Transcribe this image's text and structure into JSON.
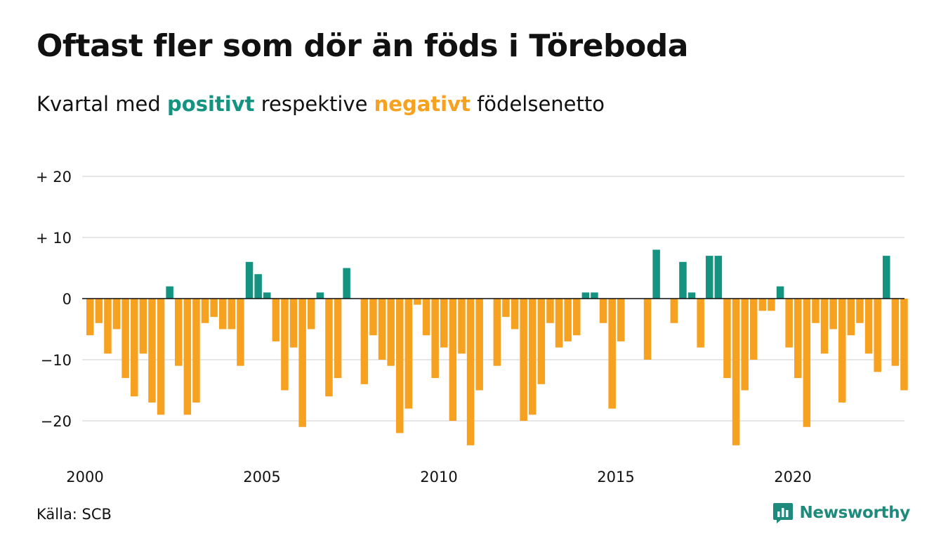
{
  "title": "Oftast fler som dör än föds i Töreboda",
  "subtitle": {
    "prefix": "Kvartal med ",
    "positive_word": "positivt",
    "middle": " respektive ",
    "negative_word": "negativt",
    "suffix": " födelsenetto"
  },
  "source": "Källa: SCB",
  "brand": {
    "name": "Newsworthy",
    "icon": "bar-chart-logo-icon"
  },
  "colors": {
    "positive": "#159381",
    "negative": "#f6a11f",
    "grid": "#dddddd",
    "text": "#111111"
  },
  "chart_data": {
    "type": "bar",
    "x_start": "2000 Q1",
    "xticks": [
      "2000",
      "2005",
      "2010",
      "2015",
      "2020"
    ],
    "ytick_labels": [
      {
        "value": 20,
        "label": "+ 20"
      },
      {
        "value": 10,
        "label": "+ 10"
      },
      {
        "value": 0,
        "label": "0"
      },
      {
        "value": -10,
        "label": "−10"
      },
      {
        "value": -20,
        "label": "−20"
      }
    ],
    "ylim": [
      -26,
      20
    ],
    "grid": true,
    "values": [
      -6,
      -4,
      -9,
      -5,
      -13,
      -16,
      -9,
      -17,
      -19,
      2,
      -11,
      -19,
      -17,
      -4,
      -3,
      -5,
      -5,
      -11,
      6,
      4,
      1,
      -7,
      -15,
      -8,
      -21,
      -5,
      1,
      -16,
      -13,
      5,
      0,
      -14,
      -6,
      -10,
      -11,
      -22,
      -18,
      -1,
      -6,
      -13,
      -8,
      -20,
      -9,
      -24,
      -15,
      0,
      -11,
      -3,
      -5,
      -20,
      -19,
      -14,
      -4,
      -8,
      -7,
      -6,
      1,
      1,
      -4,
      -18,
      -7,
      0,
      0,
      -10,
      8,
      0,
      -4,
      6,
      1,
      -8,
      7,
      7,
      -13,
      -24,
      -15,
      -10,
      -2,
      -2,
      2,
      -8,
      -13,
      -21,
      -4,
      -9,
      -5,
      -17,
      -6,
      -4,
      -9,
      -12,
      7,
      -11,
      -15
    ]
  }
}
